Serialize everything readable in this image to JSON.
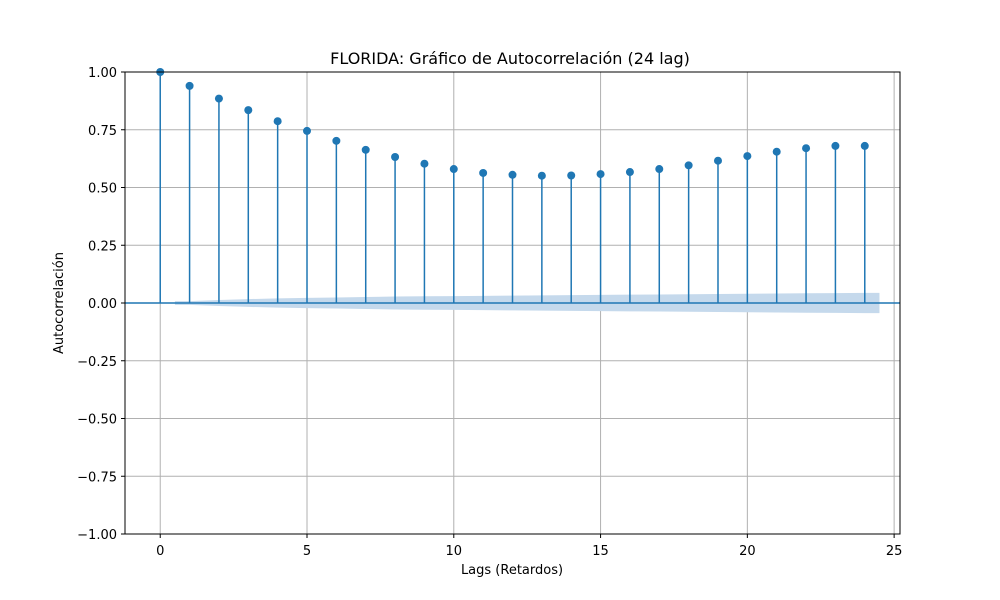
{
  "chart_data": {
    "type": "stem",
    "title": "FLORIDA: Gráfico de Autocorrelación (24 lag)",
    "xlabel": "Lags (Retardos)",
    "ylabel": "Autocorrelación",
    "xlim": [
      -1.2,
      25.2
    ],
    "ylim": [
      -1.0,
      1.0
    ],
    "xticks": [
      0,
      5,
      10,
      15,
      20,
      25
    ],
    "xtick_labels": [
      "0",
      "5",
      "10",
      "15",
      "20",
      "25"
    ],
    "yticks": [
      -1.0,
      -0.75,
      -0.5,
      -0.25,
      0.0,
      0.25,
      0.5,
      0.75,
      1.0
    ],
    "ytick_labels": [
      "−1.00",
      "−0.75",
      "−0.50",
      "−0.25",
      "0.00",
      "0.25",
      "0.50",
      "0.75",
      "1.00"
    ],
    "grid": true,
    "lags": [
      0,
      1,
      2,
      3,
      4,
      5,
      6,
      7,
      8,
      9,
      10,
      11,
      12,
      13,
      14,
      15,
      16,
      17,
      18,
      19,
      20,
      21,
      22,
      23,
      24
    ],
    "values": [
      1.0,
      0.94,
      0.885,
      0.835,
      0.787,
      0.745,
      0.702,
      0.663,
      0.632,
      0.603,
      0.58,
      0.563,
      0.555,
      0.551,
      0.552,
      0.558,
      0.567,
      0.58,
      0.596,
      0.616,
      0.636,
      0.655,
      0.67,
      0.68,
      0.68
    ],
    "confidence_band": {
      "lag_start": 0.5,
      "lag_end": 24.5,
      "lags": [
        0.5,
        1,
        2,
        3,
        4,
        5,
        6,
        7,
        8,
        9,
        10,
        11,
        12,
        13,
        14,
        15,
        16,
        17,
        18,
        19,
        20,
        21,
        22,
        23,
        24,
        24.5
      ],
      "upper": [
        0.008,
        0.008,
        0.013,
        0.017,
        0.02,
        0.022,
        0.024,
        0.026,
        0.028,
        0.029,
        0.03,
        0.031,
        0.032,
        0.033,
        0.034,
        0.035,
        0.036,
        0.037,
        0.038,
        0.039,
        0.04,
        0.041,
        0.042,
        0.043,
        0.044,
        0.044
      ]
    },
    "colors": {
      "stem": "#1f77b4",
      "band": "#c5d9ec",
      "grid": "#b0b0b0",
      "zero_line": "#1f77b4"
    }
  }
}
